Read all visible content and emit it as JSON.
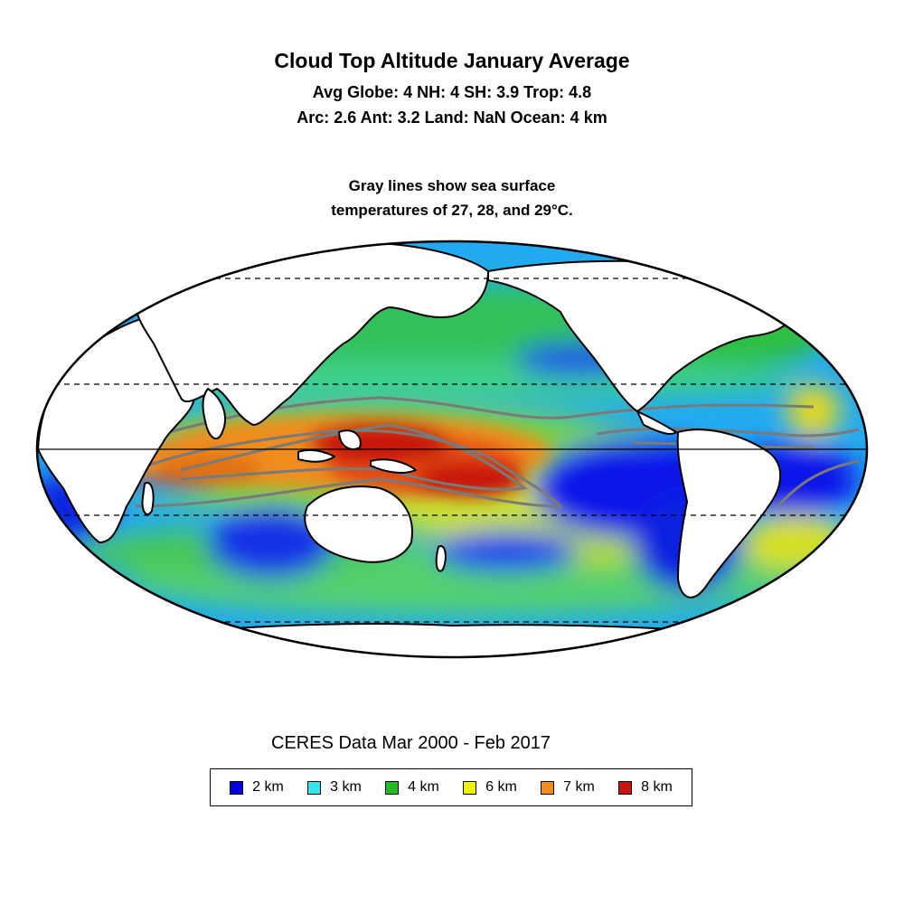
{
  "header": {
    "title": "Cloud Top Altitude January Average",
    "stats_line1": "Avg Globe: 4  NH: 4  SH: 3.9  Trop: 4.8",
    "stats_line2": "Arc: 2.6  Ant: 3.2  Land: NaN Ocean: 4 km",
    "note_line1": "Gray lines show sea surface",
    "note_line2": "temperatures of 27, 28, and 29°C."
  },
  "source": "CERES Data Mar 2000 - Feb 2017",
  "legend": [
    {
      "label": "2 km",
      "color": "#0000e0"
    },
    {
      "label": "3 km",
      "color": "#33e6ee"
    },
    {
      "label": "4 km",
      "color": "#22bb22"
    },
    {
      "label": "6 km",
      "color": "#f2f200"
    },
    {
      "label": "7 km",
      "color": "#f28c1a"
    },
    {
      "label": "8 km",
      "color": "#c8140c"
    }
  ],
  "map": {
    "projection": "mollweide",
    "ocean_base_color": "#22aaf0",
    "land_color": "#ffffff",
    "sst_contour_color": "#7a7a7a"
  }
}
